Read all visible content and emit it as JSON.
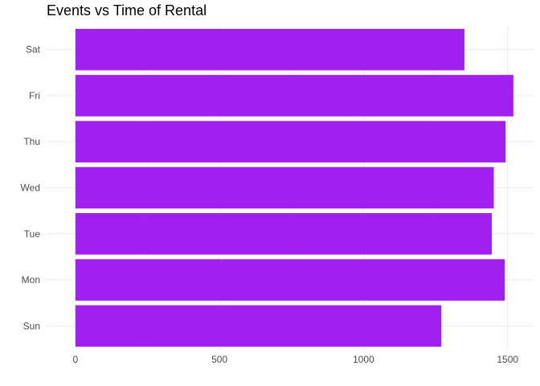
{
  "chart_data": {
    "type": "bar",
    "orientation": "horizontal",
    "title": "Events vs Time of Rental",
    "xlabel": "",
    "ylabel": "",
    "categories": [
      "Sun",
      "Mon",
      "Tue",
      "Wed",
      "Thu",
      "Fri",
      "Sat"
    ],
    "values": [
      1270,
      1490,
      1445,
      1452,
      1493,
      1520,
      1350
    ],
    "xlim": [
      -100,
      1590
    ],
    "xticks": [
      0,
      500,
      1000,
      1500
    ],
    "grid": true,
    "bar_color": "#A020F0"
  }
}
